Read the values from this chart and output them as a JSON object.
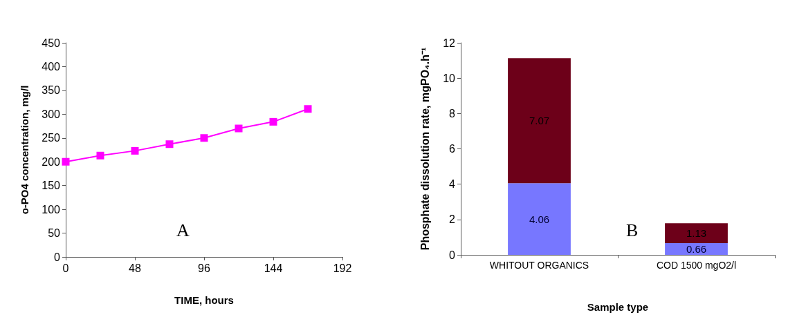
{
  "chart_data": [
    {
      "type": "line",
      "xlabel": "TIME, hours",
      "ylabel": "o-PO4 concentration, mg/l",
      "x": [
        0,
        24,
        48,
        72,
        96,
        120,
        144,
        168
      ],
      "series": [
        {
          "color": "#ff00ff",
          "values": [
            200,
            213,
            223,
            237,
            250,
            270,
            284,
            311
          ]
        }
      ],
      "xlim": [
        0,
        192
      ],
      "xticks": [
        0,
        48,
        96,
        144,
        192
      ],
      "ylim": [
        0,
        450
      ],
      "yticks": [
        0,
        50,
        100,
        150,
        200,
        250,
        300,
        350,
        400,
        450
      ],
      "marker": "square",
      "line_style": "solid",
      "grid": false,
      "annotations": [
        "A"
      ]
    },
    {
      "type": "bar",
      "stacked": true,
      "xlabel": "Sample type",
      "ylabel": "Phosphate dissolution rate, mgPO₄.h⁻¹",
      "categories": [
        "WHITOUT ORGANICS",
        "COD 1500 mgO2/l"
      ],
      "series": [
        {
          "color": "#7777ff",
          "values": [
            4.06,
            0.66
          ]
        },
        {
          "color": "#6d0019",
          "values": [
            7.07,
            1.13
          ]
        }
      ],
      "ylim": [
        0,
        12
      ],
      "yticks": [
        0,
        2,
        4,
        6,
        8,
        10,
        12
      ],
      "data_labels": true,
      "grid": false,
      "annotations": [
        "B"
      ]
    }
  ]
}
